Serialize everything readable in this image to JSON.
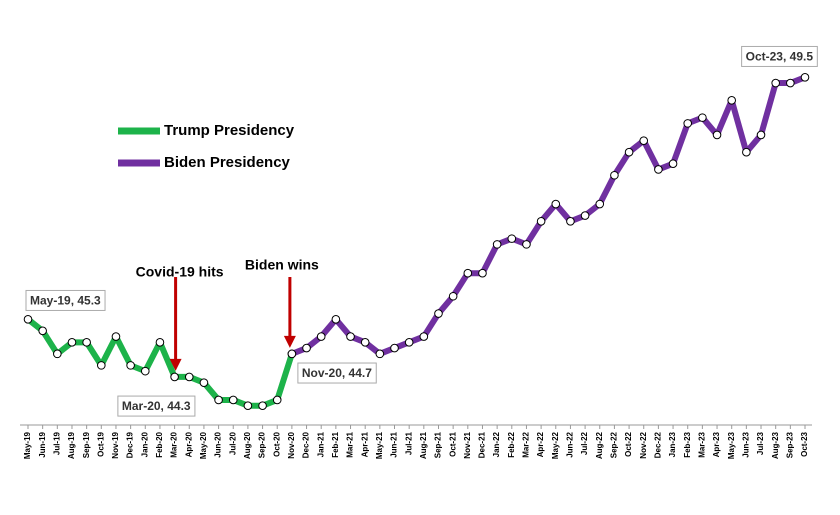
{
  "chart_data": {
    "type": "line",
    "categories": [
      "May-19",
      "Jun-19",
      "Jul-19",
      "Aug-19",
      "Sep-19",
      "Oct-19",
      "Nov-19",
      "Dec-19",
      "Jan-20",
      "Feb-20",
      "Mar-20",
      "Apr-20",
      "May-20",
      "Jun-20",
      "Jul-20",
      "Aug-20",
      "Sep-20",
      "Oct-20",
      "Nov-20",
      "Dec-20",
      "Jan-21",
      "Feb-21",
      "Mar-21",
      "Apr-21",
      "May-21",
      "Jun-21",
      "Jul-21",
      "Aug-21",
      "Sep-21",
      "Oct-21",
      "Nov-21",
      "Dec-21",
      "Jan-22",
      "Feb-22",
      "Mar-22",
      "Apr-22",
      "May-22",
      "Jun-22",
      "Jul-22",
      "Aug-22",
      "Sep-22",
      "Oct-22",
      "Nov-22",
      "Dec-22",
      "Jan-23",
      "Feb-23",
      "Mar-23",
      "Apr-23",
      "May-23",
      "Jun-23",
      "Jul-23",
      "Aug-23",
      "Sep-23",
      "Oct-23"
    ],
    "series": [
      {
        "name": "Trump Presidency",
        "color": "#1db34a",
        "values": [
          45.3,
          45.1,
          44.7,
          44.9,
          44.9,
          44.5,
          45.0,
          44.5,
          44.4,
          44.9,
          44.3,
          44.3,
          44.2,
          43.9,
          43.9,
          43.8,
          43.8,
          43.9,
          44.7,
          null,
          null,
          null,
          null,
          null,
          null,
          null,
          null,
          null,
          null,
          null,
          null,
          null,
          null,
          null,
          null,
          null,
          null,
          null,
          null,
          null,
          null,
          null,
          null,
          null,
          null,
          null,
          null,
          null,
          null,
          null,
          null,
          null,
          null,
          null
        ],
        "value_labels": [
          "May-19,  45.3",
          null,
          null,
          null,
          null,
          null,
          null,
          null,
          null,
          null,
          "Mar-20,  44.3",
          null,
          null,
          null,
          null,
          null,
          null,
          null,
          null,
          null,
          null,
          null,
          null,
          null,
          null,
          null,
          null,
          null,
          null,
          null,
          null,
          null,
          null,
          null,
          null,
          null,
          null,
          null,
          null,
          null,
          null,
          null,
          null,
          null,
          null,
          null,
          null,
          null,
          null,
          null,
          null,
          null,
          null,
          null
        ]
      },
      {
        "name": "Biden Presidency",
        "color": "#7030a0",
        "values": [
          null,
          null,
          null,
          null,
          null,
          null,
          null,
          null,
          null,
          null,
          null,
          null,
          null,
          null,
          null,
          null,
          null,
          null,
          44.7,
          44.8,
          45.0,
          45.3,
          45.0,
          44.9,
          44.7,
          44.8,
          44.9,
          45.0,
          45.4,
          45.7,
          46.1,
          46.1,
          46.6,
          46.7,
          46.6,
          47.0,
          47.3,
          47.0,
          47.1,
          47.3,
          47.8,
          48.2,
          48.4,
          47.9,
          48.0,
          48.7,
          48.8,
          48.5,
          49.1,
          48.2,
          48.5,
          49.4,
          49.4,
          49.5
        ],
        "value_labels": [
          null,
          null,
          null,
          null,
          null,
          null,
          null,
          null,
          null,
          null,
          null,
          null,
          null,
          null,
          null,
          null,
          null,
          null,
          "Nov-20,  44.7",
          null,
          null,
          null,
          null,
          null,
          null,
          null,
          null,
          null,
          null,
          null,
          null,
          null,
          null,
          null,
          null,
          null,
          null,
          null,
          null,
          null,
          null,
          null,
          null,
          null,
          null,
          null,
          null,
          null,
          null,
          null,
          null,
          null,
          null,
          "Oct-23,  49.5"
        ]
      }
    ],
    "annotations": [
      {
        "text": "Covid-19 hits",
        "category": "Mar-20"
      },
      {
        "text": "Biden wins",
        "category": "Nov-20"
      }
    ],
    "ylim": [
      43.5,
      49.8
    ]
  }
}
